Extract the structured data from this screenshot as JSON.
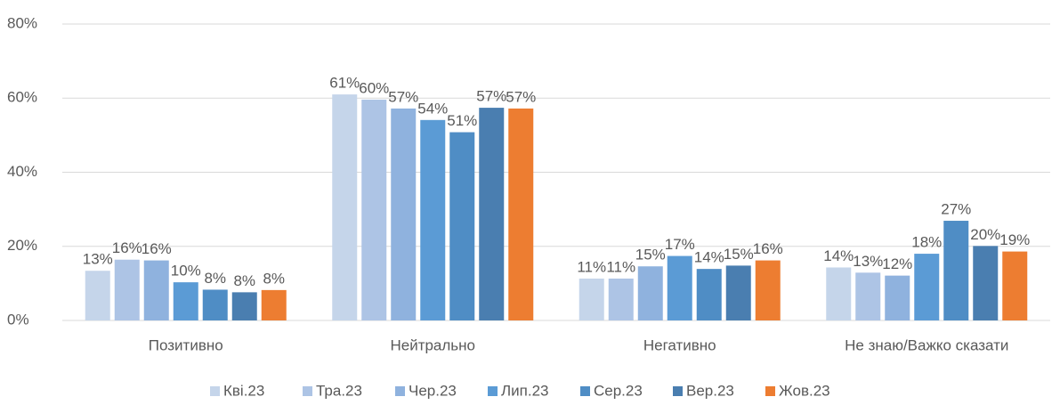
{
  "chart_data": {
    "type": "bar",
    "categories": [
      "Позитивно",
      "Нейтрально",
      "Негативно",
      "Не знаю/Важко сказати"
    ],
    "series": [
      {
        "name": "Кві.23",
        "color": "#c5d5ea",
        "values": [
          13.4,
          61,
          11.3,
          14.3
        ],
        "value_labels": [
          "13%",
          "61%",
          "11%",
          "14%"
        ]
      },
      {
        "name": "Тра.23",
        "color": "#adc4e5",
        "values": [
          16.4,
          59.6,
          11.3,
          12.9
        ],
        "value_labels": [
          "16%",
          "60%",
          "11%",
          "13%"
        ]
      },
      {
        "name": "Чер.23",
        "color": "#8fb2de",
        "values": [
          16.2,
          57.2,
          14.6,
          12.1
        ],
        "value_labels": [
          "16%",
          "57%",
          "15%",
          "12%"
        ]
      },
      {
        "name": "Лип.23",
        "color": "#5b9bd5",
        "values": [
          10.3,
          54.1,
          17.4,
          18
        ],
        "value_labels": [
          "10%",
          "54%",
          "17%",
          "18%"
        ]
      },
      {
        "name": "Сер.23",
        "color": "#4f8dc5",
        "values": [
          8.3,
          50.8,
          13.9,
          26.9
        ],
        "value_labels": [
          "8%",
          "51%",
          "14%",
          "27%"
        ]
      },
      {
        "name": "Вер.23",
        "color": "#4a7eb0",
        "values": [
          7.6,
          57.4,
          14.8,
          20.1
        ],
        "value_labels": [
          "8%",
          "57%",
          "15%",
          "20%"
        ]
      },
      {
        "name": "Жов.23",
        "color": "#ed7d31",
        "values": [
          8.2,
          57.2,
          16.2,
          18.6
        ],
        "value_labels": [
          "8%",
          "57%",
          "16%",
          "19%"
        ]
      }
    ],
    "ylim": [
      0,
      80
    ],
    "yticks": [
      {
        "value": 0,
        "label": "0%"
      },
      {
        "value": 20,
        "label": "20%"
      },
      {
        "value": 40,
        "label": "40%"
      },
      {
        "value": 60,
        "label": "60%"
      },
      {
        "value": 80,
        "label": "80%"
      }
    ],
    "grid": true,
    "legend": "bottom"
  }
}
